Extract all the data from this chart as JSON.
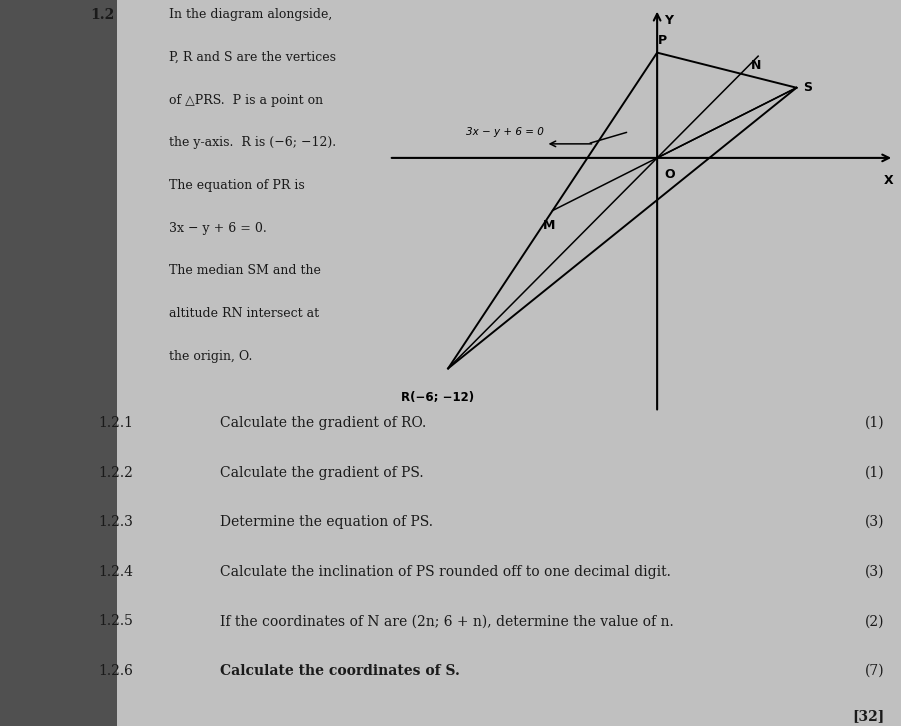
{
  "title_number": "1.2",
  "description_lines": [
    "In the diagram alongside,",
    "P, R and S are the vertices",
    "of △PRS.  P is a point on",
    "the y-axis.  R is (−6; −12).",
    "The equation of PR is",
    "3x − y + 6 = 0.",
    "The median SM and the",
    "altitude RN intersect at",
    "the origin, O."
  ],
  "diagram_equation_label": "3x − y + 6 = 0",
  "diagram_label_R": "R(−6; −12)",
  "diagram_label_P": "P",
  "diagram_label_N": "N",
  "diagram_label_S": "S",
  "diagram_label_M": "M",
  "diagram_label_O": "O",
  "diagram_label_X": "X",
  "diagram_label_Y": "Y",
  "questions": [
    {
      "num": "1.2.1",
      "text": "Calculate the gradient of RO.",
      "marks": "(1)",
      "bold": false
    },
    {
      "num": "1.2.2",
      "text": "Calculate the gradient of PS.",
      "marks": "(1)",
      "bold": false
    },
    {
      "num": "1.2.3",
      "text": "Determine the equation of PS.",
      "marks": "(3)",
      "bold": false
    },
    {
      "num": "1.2.4",
      "text": "Calculate the inclination of PS rounded off to one decimal digit.",
      "marks": "(3)",
      "bold": false
    },
    {
      "num": "1.2.5",
      "text": "If the coordinates of N are (2n; 6 + n), determine the value of n.",
      "marks": "(2)",
      "bold": false
    },
    {
      "num": "1.2.6",
      "text": "Calculate the coordinates of S.",
      "marks": "(7)",
      "bold": true
    }
  ],
  "total_marks": "[32]",
  "page_bg": "#c0c0c0",
  "shadow_bg": "#808080",
  "text_area_bg": "#d0d0d0",
  "diagram_bg": "#d8d8d8",
  "text_color": "#1a1a1a"
}
